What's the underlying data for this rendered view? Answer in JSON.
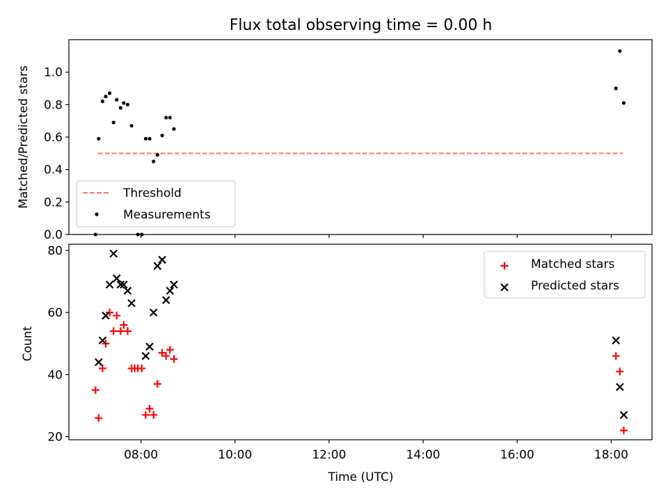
{
  "chart_data": [
    {
      "type": "scatter",
      "title": "Flux total observing time = 0.00 h",
      "xlabel": "",
      "ylabel": "Matched/Predicted stars",
      "xlim": [
        "06:28",
        "18:52"
      ],
      "ylim": [
        0,
        1.2
      ],
      "yticks": [
        0.0,
        0.2,
        0.4,
        0.6,
        0.8,
        1.0
      ],
      "yticklabels": [
        "0.0",
        "0.2",
        "0.4",
        "0.6",
        "0.8",
        "1.0"
      ],
      "xticks": [
        "08:00",
        "10:00",
        "12:00",
        "14:00",
        "16:00",
        "18:00"
      ],
      "show_xticklabels": false,
      "legend_position": "lower-left",
      "threshold": {
        "name": "Threshold",
        "value": 0.5,
        "x": [
          "07:05",
          "18:15"
        ],
        "color": "#f87171",
        "style": "dashed"
      },
      "series": [
        {
          "name": "Measurements",
          "marker": "dot",
          "color": "#000000",
          "points": [
            [
              "07:02",
              0.0
            ],
            [
              "07:06",
              0.59
            ],
            [
              "07:11",
              0.82
            ],
            [
              "07:15",
              0.85
            ],
            [
              "07:20",
              0.87
            ],
            [
              "07:25",
              0.69
            ],
            [
              "07:29",
              0.83
            ],
            [
              "07:34",
              0.78
            ],
            [
              "07:38",
              0.81
            ],
            [
              "07:43",
              0.8
            ],
            [
              "07:48",
              0.67
            ],
            [
              "07:56",
              0.0
            ],
            [
              "08:01",
              0.0
            ],
            [
              "08:06",
              0.59
            ],
            [
              "08:11",
              0.59
            ],
            [
              "08:16",
              0.45
            ],
            [
              "08:21",
              0.49
            ],
            [
              "08:27",
              0.61
            ],
            [
              "08:32",
              0.72
            ],
            [
              "08:37",
              0.72
            ],
            [
              "08:42",
              0.65
            ],
            [
              "18:06",
              0.9
            ],
            [
              "18:11",
              1.13
            ],
            [
              "18:16",
              0.81
            ]
          ]
        }
      ]
    },
    {
      "type": "scatter",
      "title": "",
      "xlabel": "Time (UTC)",
      "ylabel": "Count",
      "xlim": [
        "06:28",
        "18:52"
      ],
      "ylim": [
        19,
        82
      ],
      "yticks": [
        20,
        40,
        60,
        80
      ],
      "yticklabels": [
        "20",
        "40",
        "60",
        "80"
      ],
      "xticks": [
        "08:00",
        "10:00",
        "12:00",
        "14:00",
        "16:00",
        "18:00"
      ],
      "xticklabels": [
        "08:00",
        "10:00",
        "12:00",
        "14:00",
        "16:00",
        "18:00"
      ],
      "legend_position": "upper-right",
      "series": [
        {
          "name": "Matched stars",
          "marker": "plus",
          "color": "#ff0000",
          "points": [
            [
              "07:02",
              35
            ],
            [
              "07:06",
              26
            ],
            [
              "07:11",
              42
            ],
            [
              "07:15",
              50
            ],
            [
              "07:20",
              60
            ],
            [
              "07:25",
              54
            ],
            [
              "07:29",
              59
            ],
            [
              "07:34",
              54
            ],
            [
              "07:38",
              56
            ],
            [
              "07:43",
              54
            ],
            [
              "07:48",
              42
            ],
            [
              "07:52",
              42
            ],
            [
              "07:56",
              42
            ],
            [
              "08:01",
              42
            ],
            [
              "08:06",
              27
            ],
            [
              "08:11",
              29
            ],
            [
              "08:16",
              27
            ],
            [
              "08:21",
              37
            ],
            [
              "08:27",
              47
            ],
            [
              "08:32",
              46
            ],
            [
              "08:37",
              48
            ],
            [
              "08:42",
              45
            ],
            [
              "18:06",
              46
            ],
            [
              "18:11",
              41
            ],
            [
              "18:16",
              22
            ]
          ]
        },
        {
          "name": "Predicted stars",
          "marker": "x",
          "color": "#000000",
          "points": [
            [
              "07:06",
              44
            ],
            [
              "07:11",
              51
            ],
            [
              "07:15",
              59
            ],
            [
              "07:20",
              69
            ],
            [
              "07:25",
              79
            ],
            [
              "07:29",
              71
            ],
            [
              "07:34",
              69
            ],
            [
              "07:38",
              69
            ],
            [
              "07:43",
              67
            ],
            [
              "07:48",
              63
            ],
            [
              "08:06",
              46
            ],
            [
              "08:11",
              49
            ],
            [
              "08:16",
              60
            ],
            [
              "08:21",
              75
            ],
            [
              "08:27",
              77
            ],
            [
              "08:32",
              64
            ],
            [
              "08:37",
              67
            ],
            [
              "08:42",
              69
            ],
            [
              "18:06",
              51
            ],
            [
              "18:11",
              36
            ],
            [
              "18:16",
              27
            ]
          ]
        }
      ]
    }
  ]
}
